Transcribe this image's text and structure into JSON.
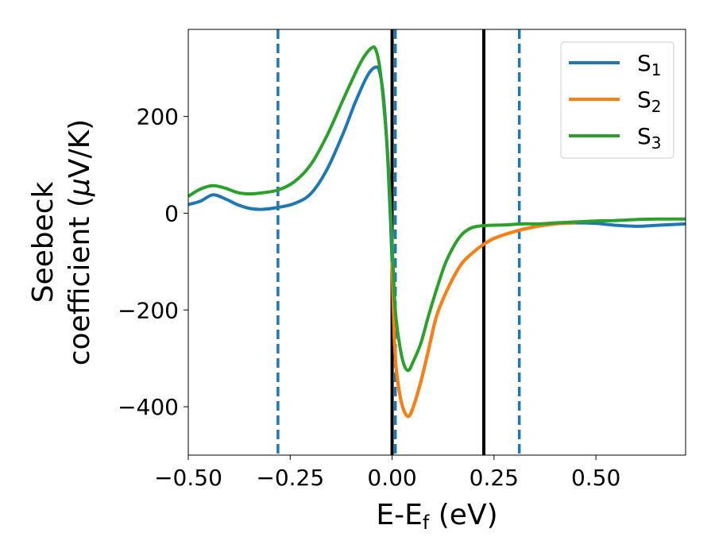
{
  "chart_data": {
    "type": "line",
    "xlabel": {
      "main": "E-E",
      "sub": "f",
      "tail": " (eV)"
    },
    "ylabel": {
      "line1": "Seebeck",
      "line2_prefix": "coefficient  (",
      "mu": "μ",
      "line2_suffix": "V/K)"
    },
    "xlim": [
      -0.5,
      0.72
    ],
    "ylim": [
      -500,
      380
    ],
    "xticks": [
      -0.5,
      -0.25,
      0.0,
      0.25,
      0.5
    ],
    "xtick_labels": [
      "−0.50",
      "−0.25",
      "0.00",
      "0.25",
      "0.50"
    ],
    "yticks": [
      200,
      0,
      -200,
      -400
    ],
    "ytick_labels": [
      "200",
      "0",
      "−200",
      "−400"
    ],
    "grid": false,
    "legend_position": "top-right",
    "series": [
      {
        "name": "S",
        "sub": "1",
        "color": "#1f77b4",
        "x": [
          -0.5,
          -0.47,
          -0.44,
          -0.41,
          -0.38,
          -0.35,
          -0.32,
          -0.28,
          -0.24,
          -0.2,
          -0.16,
          -0.12,
          -0.09,
          -0.06,
          -0.04,
          -0.03,
          -0.02,
          -0.01,
          0.0,
          0.005,
          0.01,
          0.02,
          0.03,
          0.04,
          0.05,
          0.07,
          0.09,
          0.11,
          0.14,
          0.17,
          0.2,
          0.22,
          0.25,
          0.3,
          0.35,
          0.4,
          0.45,
          0.5,
          0.55,
          0.6,
          0.65,
          0.72
        ],
        "y": [
          18,
          25,
          38,
          30,
          18,
          10,
          8,
          12,
          20,
          40,
          90,
          165,
          230,
          285,
          302,
          290,
          230,
          100,
          -100,
          -250,
          -320,
          -380,
          -410,
          -420,
          -405,
          -350,
          -280,
          -210,
          -150,
          -105,
          -80,
          -67,
          -52,
          -38,
          -28,
          -22,
          -20,
          -21,
          -25,
          -27,
          -25,
          -22
        ]
      },
      {
        "name": "S",
        "sub": "2",
        "color": "#ff7f0e",
        "x": [
          0.0,
          0.005,
          0.01,
          0.02,
          0.03,
          0.04,
          0.05,
          0.07,
          0.09,
          0.11,
          0.14,
          0.17,
          0.2,
          0.22,
          0.25,
          0.3,
          0.35,
          0.4,
          0.45
        ],
        "y": [
          -100,
          -250,
          -320,
          -380,
          -410,
          -420,
          -405,
          -350,
          -280,
          -210,
          -150,
          -105,
          -80,
          -67,
          -52,
          -38,
          -28,
          -22,
          -20
        ]
      },
      {
        "name": "S",
        "sub": "3",
        "color": "#2ca02c",
        "x": [
          -0.5,
          -0.47,
          -0.44,
          -0.41,
          -0.38,
          -0.35,
          -0.32,
          -0.28,
          -0.24,
          -0.2,
          -0.16,
          -0.12,
          -0.09,
          -0.07,
          -0.05,
          -0.04,
          -0.03,
          -0.02,
          -0.01,
          0.0,
          0.005,
          0.01,
          0.02,
          0.03,
          0.04,
          0.05,
          0.07,
          0.09,
          0.11,
          0.13,
          0.15,
          0.17,
          0.19,
          0.21,
          0.24,
          0.28,
          0.32,
          0.36,
          0.4,
          0.45,
          0.5,
          0.55,
          0.6,
          0.65,
          0.72
        ],
        "y": [
          35,
          50,
          57,
          52,
          43,
          40,
          42,
          48,
          65,
          100,
          160,
          235,
          290,
          322,
          342,
          338,
          300,
          220,
          110,
          -60,
          -160,
          -220,
          -280,
          -315,
          -325,
          -310,
          -270,
          -210,
          -155,
          -105,
          -70,
          -45,
          -32,
          -27,
          -25,
          -24,
          -22,
          -22,
          -20,
          -18,
          -16,
          -15,
          -13,
          -12,
          -12
        ]
      }
    ],
    "vlines": [
      {
        "x": -0.28,
        "style": "dashed",
        "color": "#1f77b4"
      },
      {
        "x": 0.0,
        "style": "solid",
        "color": "#000000"
      },
      {
        "x": 0.008,
        "style": "dashed",
        "color": "#1f77b4"
      },
      {
        "x": 0.225,
        "style": "solid",
        "color": "#000000"
      },
      {
        "x": 0.312,
        "style": "dashed",
        "color": "#1f77b4"
      }
    ]
  }
}
